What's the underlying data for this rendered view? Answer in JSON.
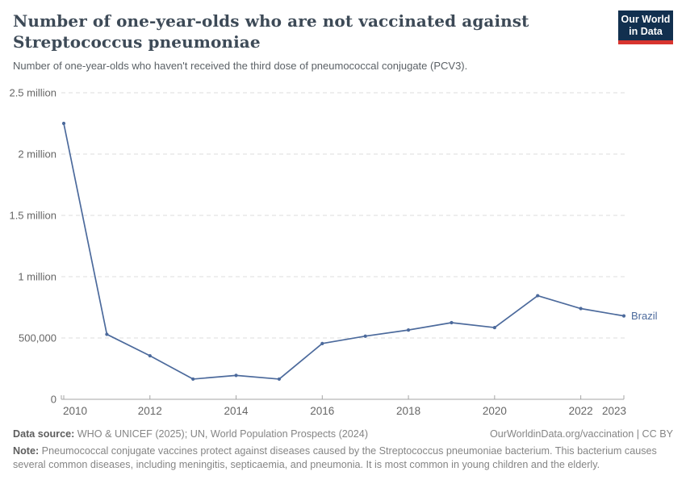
{
  "header": {
    "title_line1": "Number of one-year-olds who are not vaccinated against",
    "title_line2": "Streptococcus pneumoniae",
    "subtitle": "Number of one-year-olds who haven't received the third dose of pneumococcal conjugate (PCV3).",
    "logo": {
      "line1": "Our World",
      "line2": "in Data"
    }
  },
  "chart_data": {
    "type": "line",
    "entity": "Brazil",
    "x": [
      2010,
      2011,
      2012,
      2013,
      2014,
      2015,
      2016,
      2017,
      2018,
      2019,
      2020,
      2021,
      2022,
      2023
    ],
    "values": [
      2250000,
      530000,
      355000,
      165000,
      195000,
      165000,
      455000,
      515000,
      565000,
      625000,
      585000,
      845000,
      740000,
      680000
    ],
    "x_ticks": [
      2010,
      2012,
      2014,
      2016,
      2018,
      2020,
      2022,
      2023
    ],
    "y_ticks": [
      {
        "value": 0,
        "label": "0"
      },
      {
        "value": 500000,
        "label": "500,000"
      },
      {
        "value": 1000000,
        "label": "1 million"
      },
      {
        "value": 1500000,
        "label": "1.5 million"
      },
      {
        "value": 2000000,
        "label": "2 million"
      },
      {
        "value": 2500000,
        "label": "2.5 million"
      }
    ],
    "ylim": [
      0,
      2500000
    ],
    "xlim": [
      2010,
      2023
    ],
    "grid": "dashed-horizontal",
    "legend_position": "end-of-line",
    "line_color": "#4c6a9c",
    "gridline_color": "#dcdcdc",
    "axis_color": "#a5a5a5",
    "tick_label_color": "#666666"
  },
  "footer": {
    "data_source_label": "Data source:",
    "data_source_text": " WHO & UNICEF (2025); UN, World Population Prospects (2024)",
    "attribution": "OurWorldinData.org/vaccination | CC BY",
    "note_label": "Note:",
    "note_text": " Pneumococcal conjugate vaccines protect against diseases caused by the Streptococcus pneumoniae bacterium. This bacterium causes several common diseases, including meningitis, septicaemia, and pneumonia. It is most common in young children and the elderly."
  }
}
